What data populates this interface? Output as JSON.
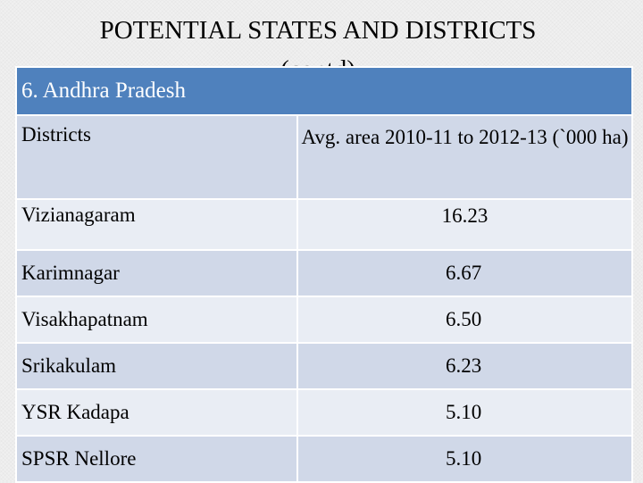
{
  "title": {
    "line1": "POTENTIAL STATES AND DISTRICTS",
    "line2": "(contd)"
  },
  "table": {
    "state_header": "6. Andhra Pradesh",
    "col_district": "Districts",
    "col_area": "Avg. area 2010-11 to 2012-13 (`000 ha)",
    "rows": [
      {
        "district": "Vizianagaram",
        "area": "16.23"
      },
      {
        "district": "Karimnagar",
        "area": "6.67"
      },
      {
        "district": "Visakhapatnam",
        "area": "6.50"
      },
      {
        "district": "Srikakulam",
        "area": "6.23"
      },
      {
        "district": "YSR Kadapa",
        "area": "5.10"
      },
      {
        "district": "SPSR Nellore",
        "area": "5.10"
      }
    ]
  },
  "colors": {
    "header_bg": "#4f81bd",
    "row_dark": "#d0d8e8",
    "row_light": "#e9edf4"
  }
}
